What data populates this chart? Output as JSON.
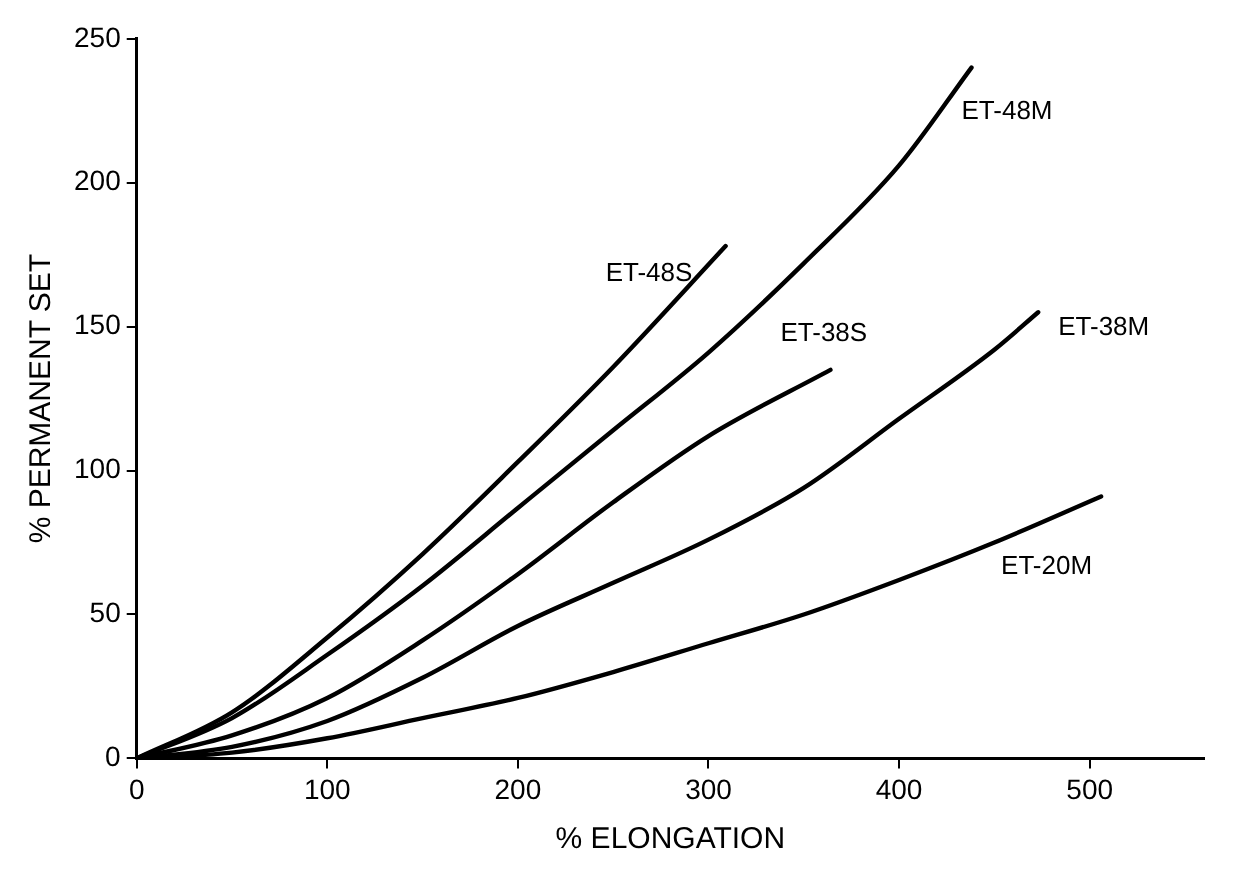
{
  "chart_data": {
    "type": "line",
    "xlabel": "% ELONGATION",
    "ylabel": "% PERMANENT SET",
    "xlim": [
      0,
      560
    ],
    "ylim": [
      0,
      250
    ],
    "xticks": [
      0,
      100,
      200,
      300,
      400,
      500
    ],
    "yticks": [
      0,
      50,
      100,
      150,
      200,
      250
    ],
    "grid": false,
    "legend": false,
    "marker": "none",
    "line_style": "solid",
    "series": [
      {
        "name": "ET-48S",
        "color": "#000000",
        "x": [
          0,
          50,
          100,
          150,
          200,
          250,
          309
        ],
        "values": [
          0,
          16,
          42,
          71,
          103,
          136,
          178
        ]
      },
      {
        "name": "ET-48M",
        "color": "#000000",
        "x": [
          0,
          50,
          100,
          150,
          200,
          250,
          300,
          350,
          400,
          438
        ],
        "values": [
          0,
          14,
          36,
          60,
          87,
          114,
          141,
          172,
          206,
          240
        ]
      },
      {
        "name": "ET-38S",
        "color": "#000000",
        "x": [
          0,
          50,
          100,
          150,
          200,
          250,
          300,
          364
        ],
        "values": [
          0,
          8,
          21,
          41,
          64,
          89,
          112,
          135
        ]
      },
      {
        "name": "ET-38M",
        "color": "#000000",
        "x": [
          0,
          50,
          100,
          150,
          200,
          250,
          300,
          350,
          400,
          450,
          473
        ],
        "values": [
          0,
          4,
          13,
          28,
          46,
          61,
          76,
          94,
          118,
          142,
          155
        ]
      },
      {
        "name": "ET-20M",
        "color": "#000000",
        "x": [
          0,
          50,
          100,
          150,
          200,
          250,
          300,
          350,
          400,
          450,
          506
        ],
        "values": [
          0,
          2,
          7,
          14,
          21,
          30,
          40,
          50,
          62,
          75,
          91
        ]
      }
    ]
  }
}
